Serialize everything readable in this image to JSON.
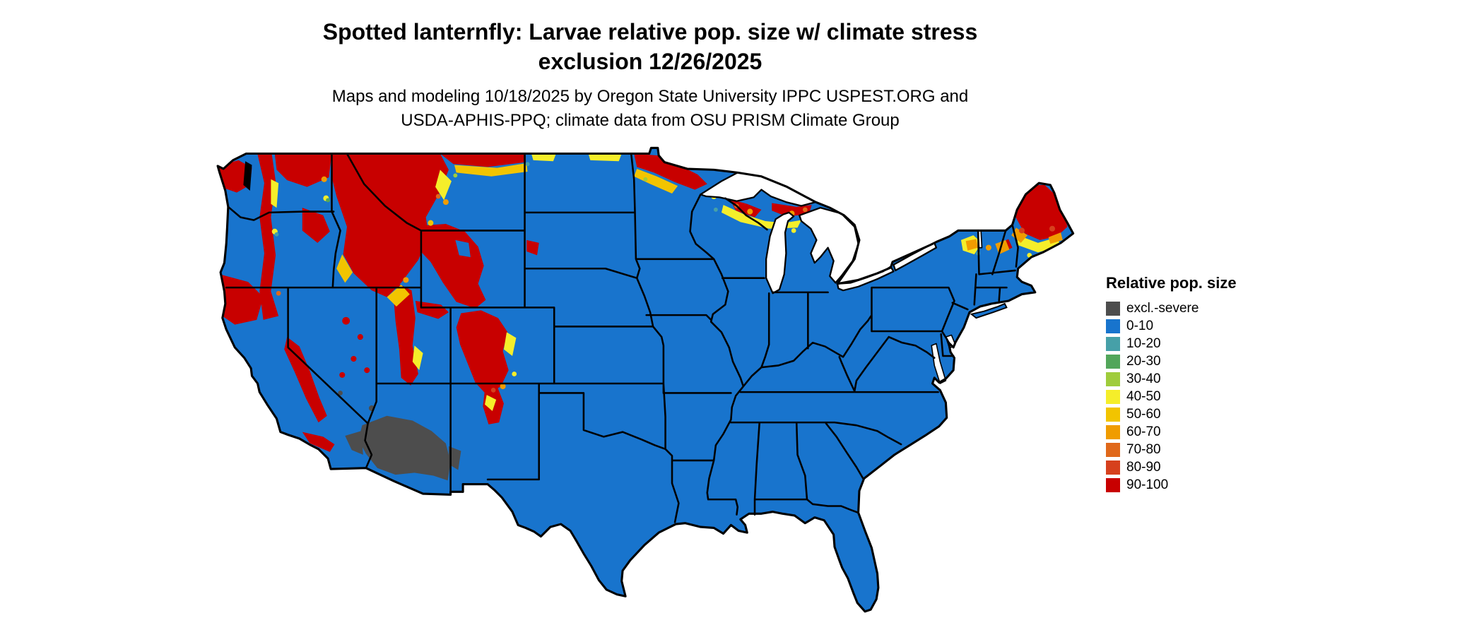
{
  "title": {
    "line1": "Spotted lanternfly: Larvae relative pop. size w/ climate stress",
    "line2": "exclusion 12/26/2025"
  },
  "subtitle": {
    "line1": "Maps and modeling 10/18/2025 by Oregon State University IPPC USPEST.ORG and",
    "line2": "USDA-APHIS-PPQ; climate data from OSU PRISM Climate Group"
  },
  "legend": {
    "title": "Relative pop. size",
    "items": [
      {
        "label": "excl.-severe",
        "color": "#4d4d4d"
      },
      {
        "label": "0-10",
        "color": "#1874CD"
      },
      {
        "label": "10-20",
        "color": "#46A0A8"
      },
      {
        "label": "20-30",
        "color": "#52A65A"
      },
      {
        "label": "30-40",
        "color": "#9FCC3B"
      },
      {
        "label": "40-50",
        "color": "#F5EE2A"
      },
      {
        "label": "50-60",
        "color": "#F2C400"
      },
      {
        "label": "60-70",
        "color": "#F09C00"
      },
      {
        "label": "70-80",
        "color": "#E0681A"
      },
      {
        "label": "80-90",
        "color": "#D6401D"
      },
      {
        "label": "90-100",
        "color": "#C80000"
      }
    ]
  },
  "map": {
    "background": "#ffffff",
    "outline": "#000000"
  }
}
